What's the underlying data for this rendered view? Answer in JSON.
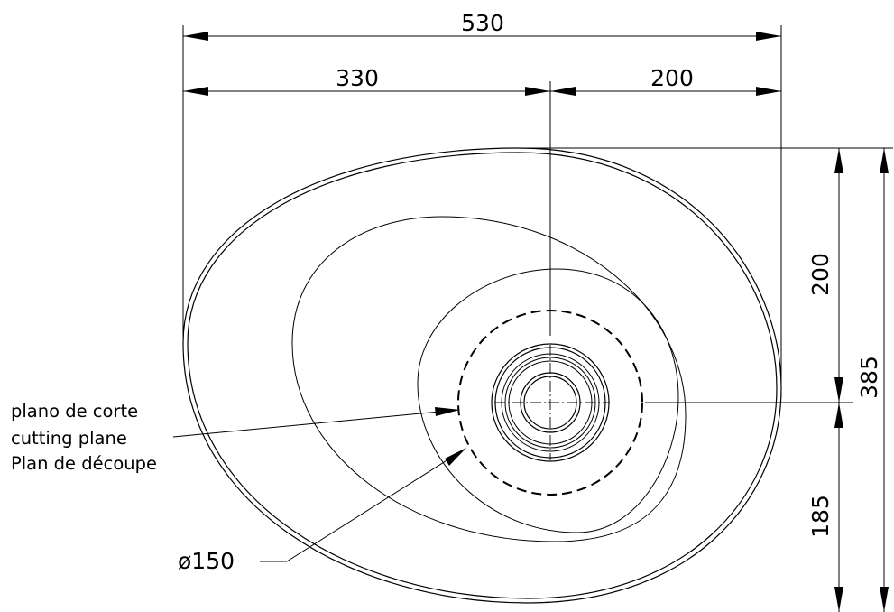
{
  "dimensions": {
    "overall_width": "530",
    "left_width": "330",
    "right_width": "200",
    "upper_height": "200",
    "lower_height": "185",
    "overall_height": "385"
  },
  "annotations": {
    "cutting_plane_es": "plano de corte",
    "cutting_plane_en": "cutting plane",
    "cutting_plane_fr": "Plan de découpe",
    "diameter": "ø150"
  }
}
